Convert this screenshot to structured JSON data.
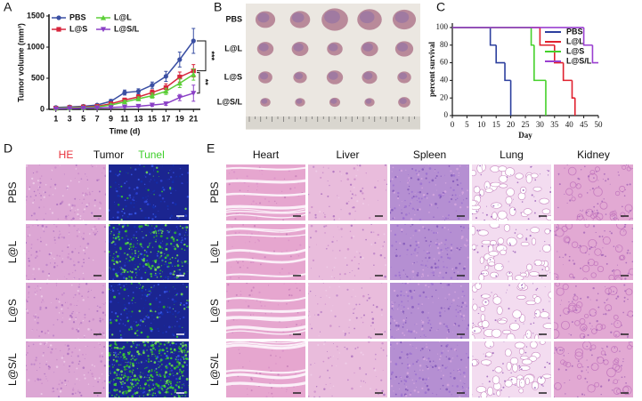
{
  "chart_data": [
    {
      "label": "A",
      "type": "line",
      "x_label": "Time (d)",
      "y_label": "Tumor volume (mm³)",
      "x": [
        1,
        3,
        5,
        7,
        9,
        11,
        13,
        15,
        17,
        19,
        21
      ],
      "xlim": [
        0,
        22
      ],
      "xticks": [
        1,
        3,
        5,
        7,
        9,
        11,
        13,
        15,
        17,
        19,
        21
      ],
      "ylim": [
        0,
        1500
      ],
      "yticks": [
        0,
        500,
        1000,
        1500
      ],
      "legend": "upper left",
      "series": [
        {
          "name": "PBS",
          "color": "#3a4fa3",
          "values": [
            30,
            40,
            50,
            70,
            130,
            270,
            290,
            390,
            530,
            800,
            1100
          ],
          "errors": [
            10,
            10,
            15,
            20,
            30,
            40,
            40,
            50,
            80,
            120,
            200
          ]
        },
        {
          "name": "L@S",
          "color": "#d7263d",
          "values": [
            20,
            30,
            40,
            50,
            90,
            150,
            200,
            270,
            350,
            520,
            620
          ],
          "errors": [
            8,
            8,
            10,
            15,
            20,
            30,
            35,
            45,
            60,
            80,
            100
          ]
        },
        {
          "name": "L@L",
          "color": "#5ccf38",
          "values": [
            20,
            25,
            30,
            40,
            70,
            120,
            170,
            220,
            290,
            420,
            560
          ],
          "errors": [
            8,
            8,
            10,
            12,
            18,
            25,
            30,
            40,
            50,
            70,
            90
          ]
        },
        {
          "name": "L@S/L",
          "color": "#8a3fc6",
          "values": [
            10,
            15,
            20,
            25,
            30,
            40,
            50,
            70,
            90,
            190,
            260
          ],
          "errors": [
            5,
            5,
            6,
            8,
            10,
            12,
            15,
            20,
            25,
            50,
            130
          ]
        }
      ],
      "annotations": [
        "***",
        "**"
      ]
    },
    {
      "label": "C",
      "type": "step",
      "x_label": "Day",
      "y_label": "percent survival",
      "xlim": [
        0,
        50
      ],
      "xticks": [
        0,
        5,
        10,
        15,
        20,
        25,
        30,
        35,
        40,
        45,
        50
      ],
      "ylim": [
        0,
        105
      ],
      "yticks": [
        0,
        20,
        40,
        60,
        80,
        100
      ],
      "legend": "upper right",
      "series": [
        {
          "name": "PBS",
          "color": "#2c3f9e",
          "x": [
            0,
            13,
            15,
            18,
            20
          ],
          "values": [
            100,
            80,
            60,
            40,
            0
          ]
        },
        {
          "name": "L@L",
          "color": "#e0202e",
          "x": [
            0,
            30,
            35,
            38,
            41,
            42
          ],
          "values": [
            100,
            80,
            60,
            40,
            20,
            0
          ]
        },
        {
          "name": "L@S",
          "color": "#45d12a",
          "x": [
            0,
            27,
            28,
            32
          ],
          "values": [
            100,
            80,
            40,
            0
          ]
        },
        {
          "name": "L@S/L",
          "color": "#9a3fd0",
          "x": [
            0,
            45,
            48,
            50
          ],
          "values": [
            100,
            80,
            60,
            60
          ]
        }
      ]
    }
  ],
  "panel_b": {
    "label": "B",
    "rows": [
      "PBS",
      "L@L",
      "L@S",
      "L@S/L"
    ]
  },
  "panel_d": {
    "label": "D",
    "columns": [
      "HE",
      "Tumor",
      "Tunel"
    ],
    "rows": [
      "PBS",
      "L@L",
      "L@S",
      "L@S/L"
    ]
  },
  "panel_e": {
    "label": "E",
    "columns": [
      "Heart",
      "Liver",
      "Spleen",
      "Lung",
      "Kidney"
    ],
    "rows": [
      "PBS",
      "L@L",
      "L@S",
      "L@S/L"
    ]
  }
}
